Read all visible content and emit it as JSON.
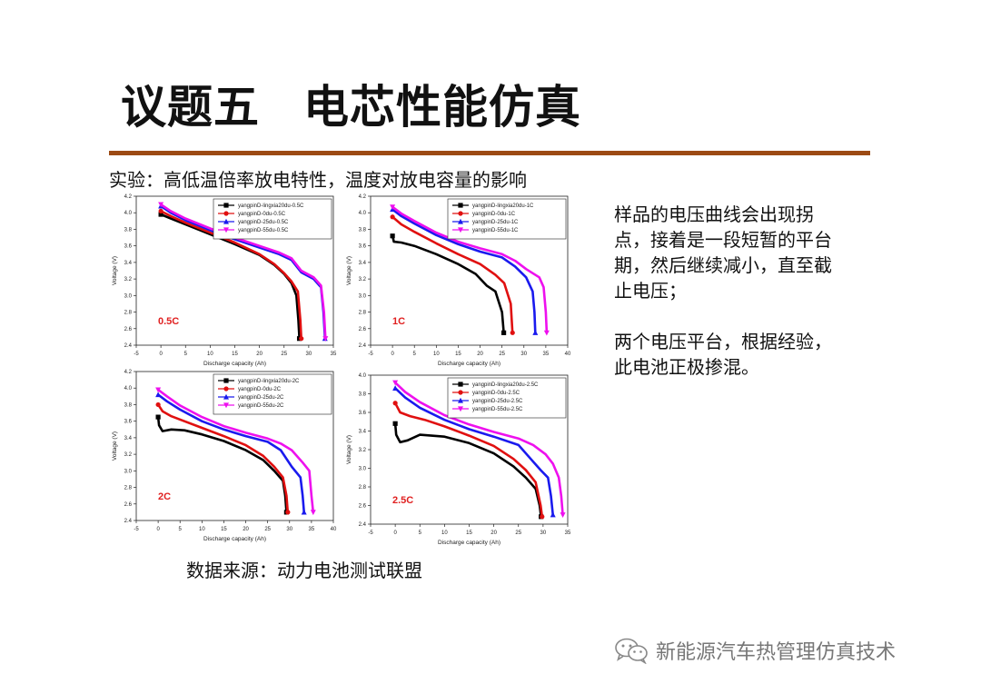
{
  "title": {
    "part1": "议题五",
    "part2": "电芯性能仿真"
  },
  "subtitle": "实验：高低温倍率放电特性，温度对放电容量的影响",
  "notes": [
    "样品的电压曲线会出现拐点，接着是一段短暂的平台期，然后继续减小，直至截止电压；",
    "两个电压平台，根据经验，此电池正极掺混。"
  ],
  "source": "数据来源：动力电池测试联盟",
  "watermark": {
    "text": "新能源汽车热管理仿真技术",
    "icon": "wechat-icon",
    "color": "#7a7a7a"
  },
  "colors": {
    "rule": "#9c4a14",
    "rate_label": "#e02020"
  },
  "chart_data": [
    {
      "type": "line",
      "rate_label": "0.5C",
      "xlabel": "Discharge capacity (Ah)",
      "ylabel": "Voltage (V)",
      "xlim": [
        -5,
        35
      ],
      "ylim": [
        2.4,
        4.2
      ],
      "x_ticks": [
        -5,
        0,
        5,
        10,
        15,
        20,
        25,
        30,
        35
      ],
      "y_ticks": [
        2.4,
        2.6,
        2.8,
        3.0,
        3.2,
        3.4,
        3.6,
        3.8,
        4.0,
        4.2
      ],
      "legend_position": "top-right",
      "series": [
        {
          "name": "yangpinD-lingxia20du-0.5C",
          "color": "#000000",
          "marker": "square",
          "points": [
            [
              0,
              3.98
            ],
            [
              2,
              3.93
            ],
            [
              5,
              3.86
            ],
            [
              10,
              3.74
            ],
            [
              15,
              3.62
            ],
            [
              20,
              3.49
            ],
            [
              23,
              3.37
            ],
            [
              25,
              3.26
            ],
            [
              26.5,
              3.15
            ],
            [
              27.5,
              3.0
            ],
            [
              27.9,
              2.7
            ],
            [
              28.1,
              2.48
            ]
          ]
        },
        {
          "name": "yangpinD-0du-0.5C",
          "color": "#e01010",
          "marker": "circle",
          "points": [
            [
              0,
              4.02
            ],
            [
              2,
              3.96
            ],
            [
              5,
              3.88
            ],
            [
              10,
              3.76
            ],
            [
              15,
              3.64
            ],
            [
              20,
              3.5
            ],
            [
              23,
              3.38
            ],
            [
              25,
              3.27
            ],
            [
              26.5,
              3.17
            ],
            [
              27.8,
              3.05
            ],
            [
              28.3,
              2.7
            ],
            [
              28.5,
              2.48
            ]
          ]
        },
        {
          "name": "yangpinD-25du-0.5C",
          "color": "#1a1aee",
          "marker": "triangle-up",
          "points": [
            [
              0,
              4.08
            ],
            [
              2,
              4.0
            ],
            [
              5,
              3.91
            ],
            [
              10,
              3.79
            ],
            [
              15,
              3.68
            ],
            [
              20,
              3.58
            ],
            [
              24,
              3.5
            ],
            [
              26.5,
              3.43
            ],
            [
              28.5,
              3.28
            ],
            [
              31,
              3.2
            ],
            [
              32.5,
              3.1
            ],
            [
              33,
              2.8
            ],
            [
              33.3,
              2.48
            ]
          ]
        },
        {
          "name": "yangpinD-55du-0.5C",
          "color": "#ee10ee",
          "marker": "triangle-down",
          "points": [
            [
              0,
              4.1
            ],
            [
              2,
              4.02
            ],
            [
              5,
              3.93
            ],
            [
              10,
              3.81
            ],
            [
              15,
              3.7
            ],
            [
              20,
              3.6
            ],
            [
              24,
              3.52
            ],
            [
              26.5,
              3.45
            ],
            [
              28.5,
              3.3
            ],
            [
              31,
              3.22
            ],
            [
              32.5,
              3.12
            ],
            [
              33.1,
              2.8
            ],
            [
              33.4,
              2.48
            ]
          ]
        }
      ]
    },
    {
      "type": "line",
      "rate_label": "1C",
      "xlabel": "Discharge capacity (Ah)",
      "ylabel": "Voltage (V)",
      "xlim": [
        -5,
        40
      ],
      "ylim": [
        2.4,
        4.2
      ],
      "x_ticks": [
        -5,
        0,
        5,
        10,
        15,
        20,
        25,
        30,
        35,
        40
      ],
      "y_ticks": [
        2.4,
        2.6,
        2.8,
        3.0,
        3.2,
        3.4,
        3.6,
        3.8,
        4.0,
        4.2
      ],
      "legend_position": "top-right",
      "series": [
        {
          "name": "yangpinD-lingxia20du-1C",
          "color": "#000000",
          "marker": "square",
          "points": [
            [
              0,
              3.72
            ],
            [
              0.3,
              3.65
            ],
            [
              2,
              3.64
            ],
            [
              5,
              3.6
            ],
            [
              10,
              3.5
            ],
            [
              15,
              3.38
            ],
            [
              19,
              3.26
            ],
            [
              21.5,
              3.12
            ],
            [
              23.5,
              3.05
            ],
            [
              25,
              2.8
            ],
            [
              25.4,
              2.55
            ]
          ]
        },
        {
          "name": "yangpinD-0du-1C",
          "color": "#e01010",
          "marker": "circle",
          "points": [
            [
              0,
              3.95
            ],
            [
              2,
              3.86
            ],
            [
              5,
              3.77
            ],
            [
              10,
              3.63
            ],
            [
              15,
              3.5
            ],
            [
              20,
              3.38
            ],
            [
              23.5,
              3.25
            ],
            [
              25.5,
              3.15
            ],
            [
              27,
              2.9
            ],
            [
              27.4,
              2.55
            ]
          ]
        },
        {
          "name": "yangpinD-25du-1C",
          "color": "#1a1aee",
          "marker": "triangle-up",
          "points": [
            [
              0,
              4.04
            ],
            [
              2,
              3.96
            ],
            [
              5,
              3.87
            ],
            [
              10,
              3.73
            ],
            [
              15,
              3.62
            ],
            [
              20,
              3.53
            ],
            [
              25,
              3.46
            ],
            [
              28,
              3.35
            ],
            [
              30.5,
              3.22
            ],
            [
              32,
              3.05
            ],
            [
              32.4,
              2.8
            ],
            [
              32.6,
              2.55
            ]
          ]
        },
        {
          "name": "yangpinD-55du-1C",
          "color": "#ee10ee",
          "marker": "triangle-down",
          "points": [
            [
              0,
              4.07
            ],
            [
              2,
              3.99
            ],
            [
              5,
              3.9
            ],
            [
              10,
              3.76
            ],
            [
              15,
              3.65
            ],
            [
              20,
              3.57
            ],
            [
              25,
              3.5
            ],
            [
              28,
              3.42
            ],
            [
              30.5,
              3.32
            ],
            [
              33.5,
              3.22
            ],
            [
              34.5,
              3.1
            ],
            [
              35,
              2.8
            ],
            [
              35.2,
              2.55
            ]
          ]
        }
      ]
    },
    {
      "type": "line",
      "rate_label": "2C",
      "xlabel": "Discharge capacity (Ah)",
      "ylabel": "Voltage (V)",
      "xlim": [
        -5,
        40
      ],
      "ylim": [
        2.4,
        4.2
      ],
      "x_ticks": [
        -5,
        0,
        5,
        10,
        15,
        20,
        25,
        30,
        35,
        40
      ],
      "y_ticks": [
        2.4,
        2.6,
        2.8,
        3.0,
        3.2,
        3.4,
        3.6,
        3.8,
        4.0,
        4.2
      ],
      "legend_position": "top-right",
      "series": [
        {
          "name": "yangpinD-lingxia20du-2C",
          "color": "#000000",
          "marker": "square",
          "points": [
            [
              0,
              3.65
            ],
            [
              0.2,
              3.55
            ],
            [
              1,
              3.48
            ],
            [
              3,
              3.5
            ],
            [
              6,
              3.49
            ],
            [
              10,
              3.44
            ],
            [
              15,
              3.36
            ],
            [
              20,
              3.25
            ],
            [
              24,
              3.13
            ],
            [
              26.5,
              3.0
            ],
            [
              28.5,
              2.88
            ],
            [
              29,
              2.7
            ],
            [
              29.3,
              2.5
            ]
          ]
        },
        {
          "name": "yangpinD-0du-2C",
          "color": "#e01010",
          "marker": "circle",
          "points": [
            [
              0,
              3.8
            ],
            [
              1,
              3.72
            ],
            [
              3,
              3.66
            ],
            [
              6,
              3.6
            ],
            [
              10,
              3.52
            ],
            [
              15,
              3.42
            ],
            [
              20,
              3.31
            ],
            [
              24,
              3.18
            ],
            [
              26.5,
              3.05
            ],
            [
              28.5,
              2.92
            ],
            [
              29.3,
              2.7
            ],
            [
              29.6,
              2.5
            ]
          ]
        },
        {
          "name": "yangpinD-25du-2C",
          "color": "#1a1aee",
          "marker": "triangle-up",
          "points": [
            [
              0,
              3.92
            ],
            [
              2,
              3.84
            ],
            [
              5,
              3.74
            ],
            [
              10,
              3.6
            ],
            [
              15,
              3.5
            ],
            [
              20,
              3.42
            ],
            [
              25,
              3.35
            ],
            [
              28,
              3.25
            ],
            [
              30.5,
              3.05
            ],
            [
              32.5,
              2.92
            ],
            [
              33,
              2.7
            ],
            [
              33.3,
              2.5
            ]
          ]
        },
        {
          "name": "yangpinD-55du-2C",
          "color": "#ee10ee",
          "marker": "triangle-down",
          "points": [
            [
              0,
              3.98
            ],
            [
              2,
              3.9
            ],
            [
              5,
              3.79
            ],
            [
              10,
              3.65
            ],
            [
              15,
              3.54
            ],
            [
              20,
              3.46
            ],
            [
              25,
              3.39
            ],
            [
              28,
              3.33
            ],
            [
              30.5,
              3.25
            ],
            [
              33,
              3.1
            ],
            [
              34.5,
              3.0
            ],
            [
              35,
              2.7
            ],
            [
              35.4,
              2.5
            ]
          ]
        }
      ]
    },
    {
      "type": "line",
      "rate_label": "2.5C",
      "xlabel": "Discharge capacity (Ah)",
      "ylabel": "Voltage (V)",
      "xlim": [
        -5,
        35
      ],
      "ylim": [
        2.4,
        4.0
      ],
      "x_ticks": [
        -5,
        0,
        5,
        10,
        15,
        20,
        25,
        30,
        35
      ],
      "y_ticks": [
        2.4,
        2.6,
        2.8,
        3.0,
        3.2,
        3.4,
        3.6,
        3.8,
        4.0
      ],
      "legend_position": "top-right",
      "series": [
        {
          "name": "yangpinD-lingxia20du-2.5C",
          "color": "#000000",
          "marker": "square",
          "points": [
            [
              0,
              3.48
            ],
            [
              0.2,
              3.36
            ],
            [
              1,
              3.28
            ],
            [
              2.5,
              3.3
            ],
            [
              5,
              3.36
            ],
            [
              10,
              3.34
            ],
            [
              15,
              3.27
            ],
            [
              20,
              3.16
            ],
            [
              24,
              3.02
            ],
            [
              26.5,
              2.9
            ],
            [
              28.5,
              2.78
            ],
            [
              29.3,
              2.6
            ],
            [
              29.6,
              2.48
            ]
          ]
        },
        {
          "name": "yangpinD-0du-2.5C",
          "color": "#e01010",
          "marker": "circle",
          "points": [
            [
              0,
              3.7
            ],
            [
              1,
              3.6
            ],
            [
              3,
              3.56
            ],
            [
              6,
              3.52
            ],
            [
              10,
              3.45
            ],
            [
              15,
              3.35
            ],
            [
              20,
              3.24
            ],
            [
              24,
              3.1
            ],
            [
              26.5,
              2.98
            ],
            [
              28.5,
              2.85
            ],
            [
              29.5,
              2.6
            ],
            [
              29.8,
              2.48
            ]
          ]
        },
        {
          "name": "yangpinD-25du-2.5C",
          "color": "#1a1aee",
          "marker": "triangle-up",
          "points": [
            [
              0,
              3.86
            ],
            [
              2,
              3.76
            ],
            [
              5,
              3.65
            ],
            [
              10,
              3.52
            ],
            [
              15,
              3.42
            ],
            [
              20,
              3.34
            ],
            [
              25,
              3.25
            ],
            [
              27.5,
              3.1
            ],
            [
              29.5,
              2.98
            ],
            [
              31,
              2.9
            ],
            [
              31.6,
              2.7
            ],
            [
              32,
              2.5
            ]
          ]
        },
        {
          "name": "yangpinD-55du-2.5C",
          "color": "#ee10ee",
          "marker": "triangle-down",
          "points": [
            [
              0,
              3.92
            ],
            [
              2,
              3.82
            ],
            [
              5,
              3.71
            ],
            [
              10,
              3.57
            ],
            [
              15,
              3.47
            ],
            [
              20,
              3.39
            ],
            [
              25,
              3.32
            ],
            [
              28,
              3.25
            ],
            [
              30.5,
              3.15
            ],
            [
              32,
              3.05
            ],
            [
              33.2,
              2.9
            ],
            [
              33.7,
              2.7
            ],
            [
              34,
              2.5
            ]
          ]
        }
      ]
    }
  ]
}
